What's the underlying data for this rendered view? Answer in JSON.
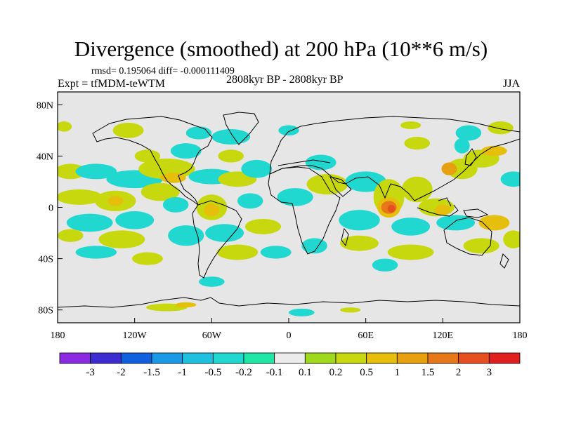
{
  "header": {
    "title": "Divergence (smoothed) at 200 hPa (10**6 m/s)",
    "stats": "rmsd= 0.195064 diff= -0.000111409",
    "experiment": "Expt = tfMDM-teWTM",
    "period": "2808kyr BP - 2808kyr BP",
    "season": "JJA"
  },
  "chart_data": {
    "type": "heatmap",
    "title": "Divergence (smoothed) at 200 hPa (10**6 m/s)",
    "xlabel": "",
    "ylabel": "",
    "xlim": [
      -180,
      180
    ],
    "ylim": [
      -90,
      90
    ],
    "x_ticks": [
      {
        "value": -180,
        "label": "180"
      },
      {
        "value": -120,
        "label": "120W"
      },
      {
        "value": -60,
        "label": "60W"
      },
      {
        "value": 0,
        "label": "0"
      },
      {
        "value": 60,
        "label": "60E"
      },
      {
        "value": 120,
        "label": "120E"
      },
      {
        "value": 180,
        "label": "180"
      }
    ],
    "y_ticks": [
      {
        "value": 80,
        "label": "80N"
      },
      {
        "value": 40,
        "label": "40N"
      },
      {
        "value": 0,
        "label": "0"
      },
      {
        "value": -40,
        "label": "40S"
      },
      {
        "value": -80,
        "label": "80S"
      }
    ],
    "background_color": "#e6e6e6",
    "colorbar": {
      "colors": [
        "#8a2be2",
        "#3d2ccf",
        "#1060e0",
        "#1a9ae6",
        "#1fc0e0",
        "#20d8d0",
        "#20e6a6",
        "#ececec",
        "#a0d81e",
        "#c8d80e",
        "#e6be0c",
        "#e6a010",
        "#e6781a",
        "#e65020",
        "#e02020"
      ],
      "labels": [
        "-3",
        "-2",
        "-1.5",
        "-1",
        "-0.5",
        "-0.2",
        "-0.1",
        "0.1",
        "0.2",
        "0.5",
        "1",
        "1.5",
        "2",
        "3"
      ]
    },
    "blobs": [
      {
        "lon": -170,
        "lat": 28,
        "rlon": 12,
        "rlat": 6,
        "level": 9
      },
      {
        "lon": -150,
        "lat": 28,
        "rlon": 16,
        "rlat": 6,
        "level": 5
      },
      {
        "lon": -120,
        "lat": 22,
        "rlon": 22,
        "rlat": 7,
        "level": 5
      },
      {
        "lon": -95,
        "lat": 30,
        "rlon": 22,
        "rlat": 8,
        "level": 9
      },
      {
        "lon": -90,
        "lat": 23,
        "rlon": 10,
        "rlat": 4,
        "level": 10
      },
      {
        "lon": -60,
        "lat": 24,
        "rlon": 18,
        "rlat": 6,
        "level": 5
      },
      {
        "lon": -40,
        "lat": 22,
        "rlon": 15,
        "rlat": 6,
        "level": 9
      },
      {
        "lon": -25,
        "lat": 30,
        "rlon": 12,
        "rlat": 7,
        "level": 5
      },
      {
        "lon": -163,
        "lat": 8,
        "rlon": 18,
        "rlat": 6,
        "level": 9
      },
      {
        "lon": -135,
        "lat": 5,
        "rlon": 16,
        "rlat": 8,
        "level": 9
      },
      {
        "lon": -135,
        "lat": 5,
        "rlon": 6,
        "rlat": 4,
        "level": 10
      },
      {
        "lon": -100,
        "lat": 12,
        "rlon": 15,
        "rlat": 7,
        "level": 9
      },
      {
        "lon": -88,
        "lat": 2,
        "rlon": 10,
        "rlat": 6,
        "level": 5
      },
      {
        "lon": -60,
        "lat": 0,
        "rlon": 12,
        "rlat": 10,
        "level": 9
      },
      {
        "lon": -60,
        "lat": -2,
        "rlon": 6,
        "rlat": 5,
        "level": 10
      },
      {
        "lon": -30,
        "lat": 5,
        "rlon": 10,
        "rlat": 6,
        "level": 5
      },
      {
        "lon": -155,
        "lat": -12,
        "rlon": 18,
        "rlat": 7,
        "level": 5
      },
      {
        "lon": -120,
        "lat": -10,
        "rlon": 15,
        "rlat": 7,
        "level": 5
      },
      {
        "lon": -170,
        "lat": -22,
        "rlon": 10,
        "rlat": 5,
        "level": 9
      },
      {
        "lon": -130,
        "lat": -25,
        "rlon": 18,
        "rlat": 7,
        "level": 9
      },
      {
        "lon": -80,
        "lat": -22,
        "rlon": 14,
        "rlat": 8,
        "level": 5
      },
      {
        "lon": -50,
        "lat": -20,
        "rlon": 15,
        "rlat": 7,
        "level": 5
      },
      {
        "lon": -20,
        "lat": -15,
        "rlon": 14,
        "rlat": 6,
        "level": 9
      },
      {
        "lon": -150,
        "lat": -35,
        "rlon": 16,
        "rlat": 5,
        "level": 5
      },
      {
        "lon": -110,
        "lat": -40,
        "rlon": 12,
        "rlat": 5,
        "level": 9
      },
      {
        "lon": -40,
        "lat": -35,
        "rlon": 16,
        "rlat": 6,
        "level": 9
      },
      {
        "lon": -10,
        "lat": -35,
        "rlon": 12,
        "rlat": 5,
        "level": 5
      },
      {
        "lon": -60,
        "lat": -58,
        "rlon": 10,
        "rlat": 4,
        "level": 5
      },
      {
        "lon": -95,
        "lat": -78,
        "rlon": 16,
        "rlat": 3,
        "level": 9
      },
      {
        "lon": -80,
        "lat": -76,
        "rlon": 8,
        "rlat": 2,
        "level": 10
      },
      {
        "lon": 10,
        "lat": -82,
        "rlon": 10,
        "rlat": 3,
        "level": 5
      },
      {
        "lon": 48,
        "lat": -80,
        "rlon": 8,
        "rlat": 2,
        "level": 9
      },
      {
        "lon": -175,
        "lat": 63,
        "rlon": 6,
        "rlat": 4,
        "level": 9
      },
      {
        "lon": -125,
        "lat": 60,
        "rlon": 12,
        "rlat": 6,
        "level": 9
      },
      {
        "lon": -70,
        "lat": 58,
        "rlon": 10,
        "rlat": 5,
        "level": 5
      },
      {
        "lon": -45,
        "lat": 55,
        "rlon": 15,
        "rlat": 6,
        "level": 5
      },
      {
        "lon": -110,
        "lat": 40,
        "rlon": 10,
        "rlat": 5,
        "level": 9
      },
      {
        "lon": -80,
        "lat": 44,
        "rlon": 12,
        "rlat": 6,
        "level": 5
      },
      {
        "lon": -45,
        "lat": 40,
        "rlon": 10,
        "rlat": 5,
        "level": 9
      },
      {
        "lon": 0,
        "lat": 60,
        "rlon": 8,
        "rlat": 4,
        "level": 5
      },
      {
        "lon": 25,
        "lat": 35,
        "rlon": 12,
        "rlat": 6,
        "level": 5
      },
      {
        "lon": 30,
        "lat": 18,
        "rlon": 16,
        "rlat": 8,
        "level": 9
      },
      {
        "lon": 60,
        "lat": 20,
        "rlon": 16,
        "rlat": 8,
        "level": 5
      },
      {
        "lon": 5,
        "lat": 8,
        "rlon": 14,
        "rlat": 7,
        "level": 5
      },
      {
        "lon": 78,
        "lat": 8,
        "rlon": 12,
        "rlat": 14,
        "level": 9
      },
      {
        "lon": 78,
        "lat": 0,
        "rlon": 9,
        "rlat": 8,
        "level": 10
      },
      {
        "lon": 78,
        "lat": 0,
        "rlon": 6,
        "rlat": 5,
        "level": 12
      },
      {
        "lon": 80,
        "lat": -1,
        "rlon": 3,
        "rlat": 3,
        "level": 13
      },
      {
        "lon": 100,
        "lat": 14,
        "rlon": 12,
        "rlat": 10,
        "level": 9
      },
      {
        "lon": 115,
        "lat": 0,
        "rlon": 14,
        "rlat": 7,
        "level": 9
      },
      {
        "lon": 120,
        "lat": -2,
        "rlon": 6,
        "rlat": 4,
        "level": 10
      },
      {
        "lon": 135,
        "lat": 30,
        "rlon": 12,
        "rlat": 8,
        "level": 9
      },
      {
        "lon": 125,
        "lat": 30,
        "rlon": 6,
        "rlat": 5,
        "level": 11
      },
      {
        "lon": 150,
        "lat": 38,
        "rlon": 14,
        "rlat": 7,
        "level": 9
      },
      {
        "lon": 160,
        "lat": 44,
        "rlon": 10,
        "rlat": 4,
        "level": 10
      },
      {
        "lon": 175,
        "lat": 22,
        "rlon": 10,
        "rlat": 6,
        "level": 5
      },
      {
        "lon": 95,
        "lat": -15,
        "rlon": 15,
        "rlat": 7,
        "level": 5
      },
      {
        "lon": 55,
        "lat": -10,
        "rlon": 16,
        "rlat": 8,
        "level": 5
      },
      {
        "lon": 55,
        "lat": -28,
        "rlon": 15,
        "rlat": 6,
        "level": 9
      },
      {
        "lon": 95,
        "lat": -35,
        "rlon": 18,
        "rlat": 6,
        "level": 9
      },
      {
        "lon": 130,
        "lat": -12,
        "rlon": 15,
        "rlat": 6,
        "level": 5
      },
      {
        "lon": 150,
        "lat": -30,
        "rlon": 14,
        "rlat": 6,
        "level": 9
      },
      {
        "lon": 160,
        "lat": -12,
        "rlon": 12,
        "rlat": 6,
        "level": 10
      },
      {
        "lon": 175,
        "lat": -25,
        "rlon": 8,
        "rlat": 7,
        "level": 9
      },
      {
        "lon": 20,
        "lat": -30,
        "rlon": 10,
        "rlat": 6,
        "level": 5
      },
      {
        "lon": 75,
        "lat": -45,
        "rlon": 10,
        "rlat": 5,
        "level": 5
      },
      {
        "lon": 100,
        "lat": 50,
        "rlon": 10,
        "rlat": 5,
        "level": 9
      },
      {
        "lon": 140,
        "lat": 58,
        "rlon": 10,
        "rlat": 6,
        "level": 5
      },
      {
        "lon": 135,
        "lat": 48,
        "rlon": 6,
        "rlat": 6,
        "level": 5
      },
      {
        "lon": 165,
        "lat": 62,
        "rlon": 10,
        "rlat": 5,
        "level": 9
      },
      {
        "lon": 95,
        "lat": 64,
        "rlon": 8,
        "rlat": 3,
        "level": 9
      }
    ]
  }
}
